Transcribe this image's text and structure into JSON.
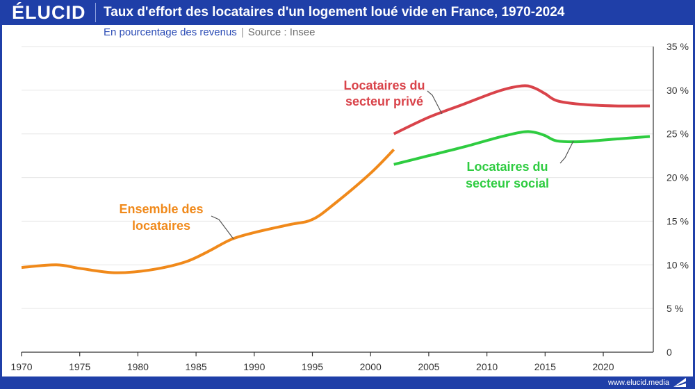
{
  "header": {
    "logo": "ÉLUCID",
    "title": "Taux d'effort des locataires d'un logement loué vide en France, 1970-2024",
    "subtitle": "En pourcentage des revenus",
    "source": "Source : Insee"
  },
  "footer": {
    "url": "www.elucid.media"
  },
  "colors": {
    "brand": "#1f3fa8",
    "ensemble": "#f0891a",
    "prive": "#d9434a",
    "social": "#2ecc40",
    "grid": "#e6e6e6"
  },
  "chart_data": {
    "type": "line",
    "title": "Taux d'effort des locataires d'un logement loué vide en France, 1970-2024",
    "xlabel": "",
    "ylabel": "En pourcentage des revenus",
    "xlim": [
      1970,
      2024.3
    ],
    "ylim": [
      0,
      35
    ],
    "x_ticks": [
      1970,
      1975,
      1980,
      1985,
      1990,
      1995,
      2000,
      2005,
      2010,
      2015,
      2020
    ],
    "y_ticks": [
      0,
      5,
      10,
      15,
      20,
      25,
      30,
      35
    ],
    "y_tick_labels": [
      "0",
      "5 %",
      "10 %",
      "15 %",
      "20 %",
      "25 %",
      "30 %",
      "35 %"
    ],
    "grid": true,
    "series": [
      {
        "name": "Ensemble des locataires",
        "label_lines": [
          "Ensemble des",
          "locataires"
        ],
        "x": [
          1970,
          1973,
          1975,
          1978,
          1981,
          1984,
          1986,
          1988,
          1990,
          1993,
          1995,
          1997,
          2000,
          2002
        ],
        "values": [
          9.7,
          10.0,
          9.6,
          9.1,
          9.4,
          10.3,
          11.5,
          12.9,
          13.7,
          14.6,
          15.2,
          17.1,
          20.5,
          23.2
        ]
      },
      {
        "name": "Locataires du secteur privé",
        "label_lines": [
          "Locataires du",
          "secteur privé"
        ],
        "x": [
          2002,
          2005,
          2008,
          2011,
          2013,
          2014,
          2015,
          2016,
          2018,
          2021,
          2024
        ],
        "values": [
          25.0,
          26.9,
          28.4,
          29.9,
          30.5,
          30.3,
          29.6,
          28.8,
          28.4,
          28.2,
          28.2
        ]
      },
      {
        "name": "Locataires du secteur social",
        "label_lines": [
          "Locataires du",
          "secteur social"
        ],
        "x": [
          2002,
          2005,
          2008,
          2011,
          2013,
          2014,
          2015,
          2016,
          2018,
          2021,
          2024
        ],
        "values": [
          21.5,
          22.5,
          23.5,
          24.6,
          25.2,
          25.2,
          24.8,
          24.2,
          24.1,
          24.4,
          24.7
        ]
      }
    ]
  }
}
